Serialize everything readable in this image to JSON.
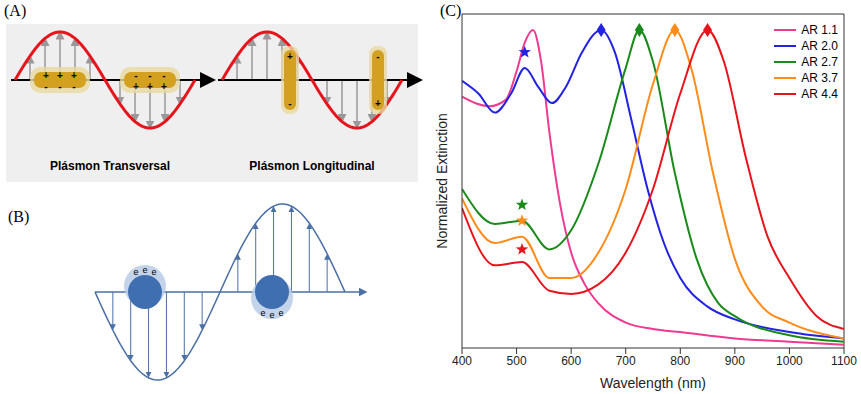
{
  "panels": {
    "A": {
      "label": "(A)",
      "captions": [
        "Plásmon Transversal",
        "Plásmon Longitudinal"
      ],
      "charges": [
        "+",
        "-"
      ]
    },
    "B": {
      "label": "(B)",
      "charges": [
        "e"
      ]
    }
  },
  "chart_data": {
    "type": "line",
    "panel": "(C)",
    "xlabel": "Wavelength (nm)",
    "ylabel": "Normalized Extinction",
    "xlim": [
      400,
      1100
    ],
    "xticks": [
      400,
      500,
      600,
      700,
      800,
      900,
      1000,
      1100
    ],
    "ylim": [
      0,
      1.05
    ],
    "tick_labels": "x",
    "legend": "upper right",
    "series": [
      {
        "name": "AR 1.1",
        "color": "#ee3b8f",
        "x": [
          400,
          450,
          480,
          500,
          515,
          530,
          545,
          560,
          580,
          600,
          625,
          650,
          700,
          750,
          800,
          900,
          1000,
          1100
        ],
        "values": [
          0.79,
          0.76,
          0.78,
          0.87,
          0.96,
          1.0,
          0.9,
          0.68,
          0.45,
          0.3,
          0.2,
          0.14,
          0.08,
          0.06,
          0.05,
          0.03,
          0.02,
          0.01
        ],
        "peaks": []
      },
      {
        "name": "AR 2.0",
        "color": "#2222e6",
        "x": [
          400,
          430,
          460,
          490,
          515,
          540,
          565,
          590,
          620,
          655,
          680,
          710,
          740,
          770,
          800,
          850,
          900,
          1000,
          1100
        ],
        "values": [
          0.84,
          0.8,
          0.74,
          0.8,
          0.88,
          0.82,
          0.77,
          0.82,
          0.93,
          1.0,
          0.93,
          0.72,
          0.5,
          0.33,
          0.22,
          0.13,
          0.09,
          0.05,
          0.03
        ],
        "peaks": [
          {
            "x": 515,
            "y": 0.93,
            "marker": "star"
          },
          {
            "x": 655,
            "y": 1.0,
            "marker": "diamond"
          }
        ]
      },
      {
        "name": "AR 2.7",
        "color": "#1a8a1a",
        "x": [
          400,
          460,
          510,
          560,
          600,
          650,
          700,
          725,
          750,
          790,
          830,
          870,
          900,
          1000,
          1100
        ],
        "values": [
          0.5,
          0.39,
          0.4,
          0.31,
          0.37,
          0.58,
          0.88,
          1.0,
          0.9,
          0.55,
          0.28,
          0.14,
          0.1,
          0.04,
          0.02
        ],
        "peaks": [
          {
            "x": 510,
            "y": 0.45,
            "marker": "star"
          },
          {
            "x": 725,
            "y": 1.0,
            "marker": "diamond"
          }
        ]
      },
      {
        "name": "AR 3.7",
        "color": "#ff8c1a",
        "x": [
          400,
          460,
          510,
          560,
          600,
          650,
          700,
          750,
          790,
          820,
          860,
          900,
          950,
          1000,
          1100
        ],
        "values": [
          0.47,
          0.33,
          0.35,
          0.22,
          0.22,
          0.3,
          0.5,
          0.83,
          1.0,
          0.88,
          0.55,
          0.28,
          0.13,
          0.08,
          0.03
        ],
        "peaks": [
          {
            "x": 510,
            "y": 0.4,
            "marker": "star"
          },
          {
            "x": 790,
            "y": 1.0,
            "marker": "diamond"
          }
        ]
      },
      {
        "name": "AR 4.4",
        "color": "#e8141c",
        "x": [
          400,
          460,
          510,
          560,
          600,
          650,
          700,
          750,
          800,
          850,
          880,
          920,
          960,
          1000,
          1050,
          1100
        ],
        "values": [
          0.44,
          0.26,
          0.27,
          0.18,
          0.17,
          0.2,
          0.3,
          0.5,
          0.8,
          1.0,
          0.9,
          0.6,
          0.35,
          0.22,
          0.1,
          0.06
        ],
        "peaks": [
          {
            "x": 510,
            "y": 0.31,
            "marker": "star"
          },
          {
            "x": 850,
            "y": 1.0,
            "marker": "diamond"
          }
        ]
      }
    ]
  }
}
